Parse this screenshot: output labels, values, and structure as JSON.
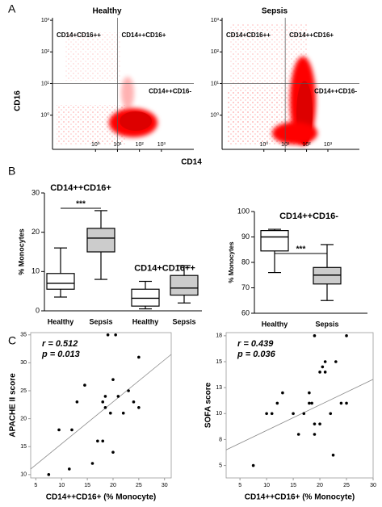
{
  "panel_labels": [
    "A",
    "B",
    "C"
  ],
  "axis_labels": {
    "flow_y": "CD16",
    "flow_x": "CD14"
  },
  "chart_data": [
    {
      "type": "flow",
      "title": "Healthy",
      "log": true,
      "xlim": [
        0.011,
        30000
      ],
      "ylim": [
        0.083,
        1200
      ],
      "xticks": [
        {
          "value": 1,
          "label": "10⁰"
        },
        {
          "value": 10,
          "label": "10¹"
        },
        {
          "value": 100,
          "label": "10²"
        },
        {
          "value": 1000,
          "label": "10³"
        }
      ],
      "yticks": [
        {
          "value": 1,
          "label": "10⁰"
        },
        {
          "value": 10,
          "label": "10¹"
        },
        {
          "value": 100,
          "label": "10²"
        },
        {
          "value": 1000,
          "label": "10³"
        }
      ],
      "gate": {
        "x": 10,
        "y": 10
      },
      "quadrants": [
        "CD14+CD16++",
        "CD14++CD16+",
        "CD14++CD16-"
      ],
      "color": "#ff0000"
    },
    {
      "type": "flow",
      "title": "Sepsis",
      "log": true,
      "xlim": [
        0.011,
        30000
      ],
      "ylim": [
        0.083,
        1200
      ],
      "xticks": [
        {
          "value": 1,
          "label": "10⁰"
        },
        {
          "value": 10,
          "label": "10¹"
        },
        {
          "value": 100,
          "label": "10²"
        },
        {
          "value": 1000,
          "label": "10³"
        }
      ],
      "yticks": [
        {
          "value": 1,
          "label": "10⁰"
        },
        {
          "value": 10,
          "label": "10¹"
        },
        {
          "value": 100,
          "label": "10²"
        },
        {
          "value": 1000,
          "label": "10³"
        }
      ],
      "gate": {
        "x": 10,
        "y": 10
      },
      "quadrants": [
        "CD14+CD16++",
        "CD14++CD16+",
        "CD14++CD16-"
      ],
      "color": "#ff0000"
    },
    {
      "type": "box",
      "ylabel": "% Monocytes",
      "ylim": [
        0,
        30
      ],
      "yticks": [
        0,
        10,
        20,
        30
      ],
      "categories": [
        "Healthy",
        "Sepsis",
        "Healthy",
        "Sepsis"
      ],
      "groups": [
        {
          "title": "CD14++CD16+",
          "significance": "***"
        },
        {
          "title": "CD14+CD16++"
        }
      ],
      "min": [
        3.5,
        8,
        0.5,
        2
      ],
      "q1": [
        5.5,
        15,
        1.2,
        4
      ],
      "median": [
        7,
        18.5,
        3.2,
        5.8
      ],
      "q3": [
        9.5,
        21,
        5.5,
        9
      ],
      "max": [
        16,
        25.5,
        7.5,
        11.5
      ],
      "colors": [
        "#ffffff",
        "#cccccc",
        "#ffffff",
        "#cccccc"
      ]
    },
    {
      "type": "box",
      "ylabel": "% Monocytes",
      "ylim": [
        60,
        100
      ],
      "yticks": [
        60,
        70,
        80,
        90,
        100
      ],
      "categories": [
        "Healthy",
        "Sepsis"
      ],
      "groups": [
        {
          "title": "CD14++CD16-",
          "significance": "***"
        }
      ],
      "min": [
        76,
        65
      ],
      "q1": [
        84.5,
        71.5
      ],
      "median": [
        90,
        75
      ],
      "q3": [
        92.5,
        78
      ],
      "max": [
        93,
        87
      ],
      "colors": [
        "#ffffff",
        "#cccccc"
      ]
    },
    {
      "type": "scatter",
      "xlabel": "CD14++CD16+ (% Monocyte)",
      "ylabel": "APACHE II score",
      "stats": [
        "r = 0.512",
        "p = 0.013"
      ],
      "xlim": [
        4,
        31.3
      ],
      "ylim": [
        9.4,
        35.4
      ],
      "xticks": [
        5,
        10,
        15,
        20,
        25,
        30
      ],
      "yticks": [
        10,
        15,
        20,
        25,
        30,
        35
      ],
      "x": [
        7.5,
        9.5,
        11.5,
        12,
        13,
        14.5,
        16,
        17,
        18,
        18,
        18.5,
        18.5,
        19,
        19.5,
        20,
        20,
        20.5,
        21,
        22,
        23,
        24,
        25,
        25
      ],
      "y": [
        10,
        18,
        11,
        18,
        23,
        26,
        12,
        16,
        16,
        23,
        24,
        22,
        35,
        21,
        14,
        27,
        35,
        24,
        21,
        25,
        23,
        31,
        22
      ],
      "fit": {
        "x": [
          4,
          31.3
        ],
        "y": [
          11,
          31.5
        ]
      }
    },
    {
      "type": "scatter",
      "xlabel": "CD14++CD16+ (% Monocyte)",
      "ylabel": "SOFA score",
      "stats": [
        "r = 0.439",
        "p = 0.036"
      ],
      "xlim": [
        2.4,
        30
      ],
      "ylim": [
        3.8,
        17.8
      ],
      "xticks": [
        5,
        10,
        15,
        20,
        25,
        30
      ],
      "yticks": [
        5,
        {
          "value": 7.5,
          "label": "8"
        },
        10,
        {
          "value": 12.5,
          "label": "13"
        },
        15,
        {
          "value": 17.5,
          "label": "18"
        }
      ],
      "x": [
        7.5,
        10,
        11,
        12,
        13,
        15,
        16,
        17,
        18,
        18,
        18.5,
        19,
        19,
        19,
        20,
        20,
        20.5,
        21,
        21,
        22,
        22.5,
        23,
        24,
        25,
        25
      ],
      "y": [
        5,
        10,
        10,
        11,
        12,
        10,
        8,
        10,
        11,
        12,
        11,
        17.5,
        9,
        8,
        14,
        9,
        14.5,
        15,
        14,
        10,
        6,
        15,
        11,
        11,
        17.5
      ],
      "fit": {
        "x": [
          2.4,
          30
        ],
        "y": [
          6.5,
          13.3
        ]
      }
    }
  ]
}
